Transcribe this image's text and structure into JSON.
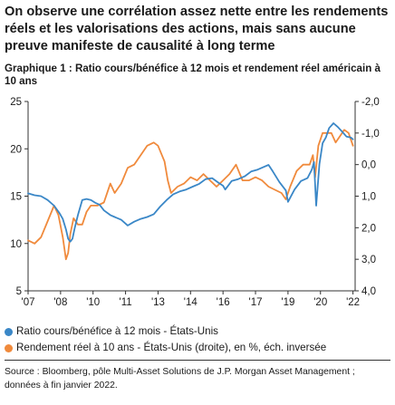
{
  "headline": "On observe une corrélation assez nette entre les rendements réels et les valorisations des actions, mais sans aucune preuve manifeste de causalité à long terme",
  "subtitle": "Graphique 1 : Ratio cours/bénéfice à 12 mois et rendement réel américain à 10 ans",
  "source": "Source : Bloomberg, pôle Multi-Asset Solutions de J.P. Morgan Asset Management ; données à fin janvier 2022.",
  "chart_data": {
    "type": "line",
    "x_tick_labels": [
      "'07",
      "'08",
      "'10",
      "'11",
      "'13",
      "'14",
      "'16",
      "'17",
      "'19",
      "'20",
      "'22"
    ],
    "x_tick_years": [
      2007,
      2008.5,
      2010,
      2011.5,
      2013,
      2014.5,
      2016,
      2017.5,
      2019,
      2020.5,
      2022
    ],
    "xlim": [
      2007,
      2022.1
    ],
    "y_left": {
      "min": 5,
      "max": 25,
      "ticks": [
        "5",
        "10",
        "15",
        "20",
        "25"
      ]
    },
    "y_right": {
      "min": -2.0,
      "max": 4.0,
      "inverted": true,
      "ticks": [
        "-2,0",
        "-1,0",
        "0,0",
        "1,0",
        "2,0",
        "3,0",
        "4,0"
      ]
    },
    "grid": false,
    "series": [
      {
        "name": "Ratio cours/bénéfice à 12 mois - États-Unis",
        "axis": "left",
        "color": "#3a87c7",
        "x": [
          2007.0,
          2007.3,
          2007.6,
          2007.9,
          2008.2,
          2008.45,
          2008.6,
          2008.75,
          2008.85,
          2008.95,
          2009.05,
          2009.15,
          2009.3,
          2009.5,
          2009.7,
          2009.9,
          2010.1,
          2010.3,
          2010.5,
          2010.8,
          2011.0,
          2011.3,
          2011.6,
          2011.9,
          2012.2,
          2012.5,
          2012.8,
          2013.1,
          2013.4,
          2013.7,
          2014.0,
          2014.3,
          2014.6,
          2014.9,
          2015.2,
          2015.5,
          2015.8,
          2016.0,
          2016.1,
          2016.4,
          2016.7,
          2017.0,
          2017.3,
          2017.6,
          2017.9,
          2018.1,
          2018.3,
          2018.6,
          2018.9,
          2019.0,
          2019.3,
          2019.6,
          2019.9,
          2020.1,
          2020.2,
          2020.3,
          2020.45,
          2020.6,
          2020.75,
          2020.9,
          2021.1,
          2021.3,
          2021.5,
          2021.7,
          2021.9,
          2022.0
        ],
        "y": [
          15.3,
          15.1,
          15.0,
          14.6,
          14.0,
          13.2,
          12.6,
          11.5,
          10.5,
          10.2,
          10.5,
          11.6,
          13.0,
          14.6,
          14.7,
          14.6,
          14.3,
          14.1,
          13.5,
          13.0,
          12.8,
          12.5,
          11.9,
          12.3,
          12.6,
          12.8,
          13.1,
          13.9,
          14.6,
          15.2,
          15.5,
          15.7,
          16.0,
          16.3,
          16.8,
          16.9,
          16.4,
          16.1,
          15.7,
          16.6,
          16.8,
          17.1,
          17.6,
          17.8,
          18.1,
          18.3,
          17.6,
          16.5,
          15.6,
          14.4,
          15.7,
          16.6,
          16.9,
          17.8,
          18.6,
          14.0,
          18.4,
          20.6,
          21.2,
          22.2,
          22.7,
          22.3,
          21.8,
          21.3,
          21.2,
          21.0
        ]
      },
      {
        "name": "Rendement réel à 10 ans - États-Unis (droite), en %, éch. inversée",
        "axis": "right",
        "color": "#f08a3c",
        "x": [
          2007.0,
          2007.3,
          2007.6,
          2007.9,
          2008.2,
          2008.4,
          2008.6,
          2008.75,
          2008.85,
          2008.95,
          2009.1,
          2009.3,
          2009.5,
          2009.7,
          2009.9,
          2010.2,
          2010.5,
          2010.8,
          2011.0,
          2011.3,
          2011.6,
          2011.9,
          2012.2,
          2012.5,
          2012.8,
          2013.0,
          2013.3,
          2013.45,
          2013.6,
          2013.9,
          2014.2,
          2014.5,
          2014.8,
          2015.1,
          2015.4,
          2015.7,
          2016.0,
          2016.3,
          2016.6,
          2016.9,
          2017.2,
          2017.5,
          2017.8,
          2018.1,
          2018.4,
          2018.7,
          2018.9,
          2019.1,
          2019.4,
          2019.7,
          2020.0,
          2020.15,
          2020.25,
          2020.4,
          2020.6,
          2020.8,
          2021.0,
          2021.2,
          2021.4,
          2021.6,
          2021.8,
          2022.0
        ],
        "y": [
          2.4,
          2.5,
          2.3,
          1.8,
          1.3,
          1.6,
          2.3,
          3.0,
          2.8,
          2.2,
          1.7,
          1.9,
          1.9,
          1.5,
          1.3,
          1.3,
          1.2,
          0.6,
          0.9,
          0.6,
          0.1,
          0.0,
          -0.3,
          -0.6,
          -0.7,
          -0.6,
          -0.1,
          0.5,
          0.9,
          0.7,
          0.6,
          0.4,
          0.5,
          0.3,
          0.5,
          0.7,
          0.5,
          0.3,
          0.0,
          0.5,
          0.5,
          0.4,
          0.5,
          0.7,
          0.8,
          0.9,
          1.1,
          0.7,
          0.2,
          0.0,
          0.0,
          -0.3,
          0.4,
          -0.6,
          -1.0,
          -1.0,
          -1.0,
          -0.7,
          -0.9,
          -1.1,
          -1.0,
          -0.6
        ]
      }
    ]
  }
}
